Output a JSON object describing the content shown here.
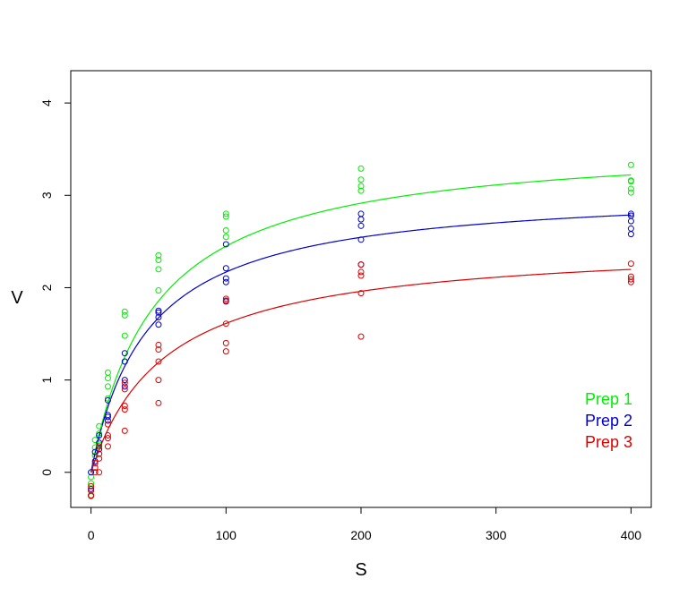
{
  "chart_data": {
    "type": "scatter",
    "title": "",
    "xlabel": "S",
    "ylabel": "V",
    "xlim": [
      -15,
      415
    ],
    "ylim": [
      -0.38,
      4.35
    ],
    "x_ticks": [
      0,
      100,
      200,
      300,
      400
    ],
    "y_ticks": [
      0,
      1,
      2,
      3,
      4
    ],
    "grid": false,
    "legend_position": "bottom-right",
    "series": [
      {
        "name": "Prep 1",
        "color": "#00ee00",
        "vmax": 3.6,
        "km": 47,
        "points": [
          [
            0,
            -0.26
          ],
          [
            0,
            -0.2
          ],
          [
            0,
            -0.12
          ],
          [
            0,
            -0.05
          ],
          [
            0,
            0.0
          ],
          [
            3,
            0.18
          ],
          [
            3,
            0.27
          ],
          [
            3,
            0.35
          ],
          [
            6,
            0.3
          ],
          [
            6,
            0.42
          ],
          [
            6,
            0.5
          ],
          [
            12.5,
            0.8
          ],
          [
            12.5,
            0.93
          ],
          [
            12.5,
            1.02
          ],
          [
            12.5,
            1.08
          ],
          [
            25,
            1.2
          ],
          [
            25,
            1.48
          ],
          [
            25,
            1.7
          ],
          [
            25,
            1.74
          ],
          [
            50,
            1.97
          ],
          [
            50,
            2.2
          ],
          [
            50,
            2.3
          ],
          [
            50,
            2.35
          ],
          [
            100,
            2.55
          ],
          [
            100,
            2.62
          ],
          [
            100,
            2.77
          ],
          [
            100,
            2.8
          ],
          [
            200,
            3.05
          ],
          [
            200,
            3.1
          ],
          [
            200,
            3.17
          ],
          [
            200,
            3.29
          ],
          [
            400,
            3.03
          ],
          [
            400,
            3.07
          ],
          [
            400,
            3.15
          ],
          [
            400,
            3.16
          ],
          [
            400,
            3.33
          ]
        ]
      },
      {
        "name": "Prep 2",
        "color": "#0000cc",
        "vmax": 3.08,
        "km": 42,
        "points": [
          [
            0,
            -0.25
          ],
          [
            0,
            -0.18
          ],
          [
            0,
            0.0
          ],
          [
            3,
            0.12
          ],
          [
            3,
            0.22
          ],
          [
            6,
            0.25
          ],
          [
            6,
            0.32
          ],
          [
            6,
            0.4
          ],
          [
            12.5,
            0.56
          ],
          [
            12.5,
            0.6
          ],
          [
            12.5,
            0.62
          ],
          [
            12.5,
            0.78
          ],
          [
            25,
            0.93
          ],
          [
            25,
            1.0
          ],
          [
            25,
            1.2
          ],
          [
            25,
            1.29
          ],
          [
            50,
            1.6
          ],
          [
            50,
            1.68
          ],
          [
            50,
            1.73
          ],
          [
            50,
            1.75
          ],
          [
            100,
            1.85
          ],
          [
            100,
            2.06
          ],
          [
            100,
            2.1
          ],
          [
            100,
            2.21
          ],
          [
            100,
            2.47
          ],
          [
            200,
            2.25
          ],
          [
            200,
            2.52
          ],
          [
            200,
            2.67
          ],
          [
            200,
            2.74
          ],
          [
            200,
            2.8
          ],
          [
            400,
            2.58
          ],
          [
            400,
            2.64
          ],
          [
            400,
            2.72
          ],
          [
            400,
            2.78
          ],
          [
            400,
            2.8
          ]
        ]
      },
      {
        "name": "Prep 3",
        "color": "#dd0000",
        "vmax": 2.5,
        "km": 55,
        "points": [
          [
            0,
            -0.25
          ],
          [
            0,
            -0.2
          ],
          [
            0,
            -0.15
          ],
          [
            3,
            0.0
          ],
          [
            3,
            0.05
          ],
          [
            3,
            0.1
          ],
          [
            6,
            0.0
          ],
          [
            6,
            0.15
          ],
          [
            6,
            0.2
          ],
          [
            6,
            0.28
          ],
          [
            12.5,
            0.28
          ],
          [
            12.5,
            0.37
          ],
          [
            12.5,
            0.4
          ],
          [
            12.5,
            0.52
          ],
          [
            25,
            0.45
          ],
          [
            25,
            0.68
          ],
          [
            25,
            0.72
          ],
          [
            25,
            0.9
          ],
          [
            25,
            0.97
          ],
          [
            50,
            0.75
          ],
          [
            50,
            1.0
          ],
          [
            50,
            1.2
          ],
          [
            50,
            1.33
          ],
          [
            50,
            1.38
          ],
          [
            100,
            1.31
          ],
          [
            100,
            1.4
          ],
          [
            100,
            1.61
          ],
          [
            100,
            1.86
          ],
          [
            100,
            1.88
          ],
          [
            200,
            1.47
          ],
          [
            200,
            1.94
          ],
          [
            200,
            2.13
          ],
          [
            200,
            2.17
          ],
          [
            200,
            2.25
          ],
          [
            400,
            2.06
          ],
          [
            400,
            2.09
          ],
          [
            400,
            2.12
          ],
          [
            400,
            2.26
          ]
        ]
      }
    ]
  }
}
